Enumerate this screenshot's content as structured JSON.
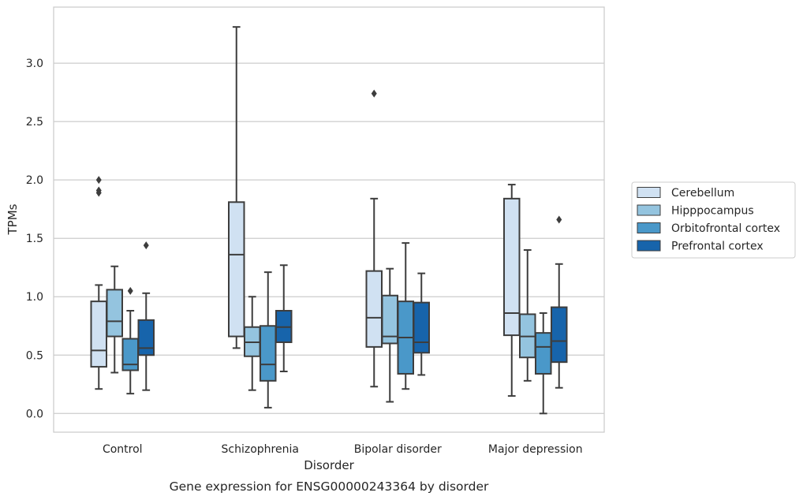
{
  "chart_data": {
    "type": "box",
    "caption": "Gene expression for ENSG00000243364 by disorder",
    "xlabel": "Disorder",
    "ylabel": "TPMs",
    "ylim": [
      -0.16,
      3.48
    ],
    "yticks": [
      0.0,
      0.5,
      1.0,
      1.5,
      2.0,
      2.5,
      3.0
    ],
    "ytick_labels": [
      "0.0",
      "0.5",
      "1.0",
      "1.5",
      "2.0",
      "2.5",
      "3.0"
    ],
    "grid": "horizontal",
    "legend_position": "right",
    "categories": [
      "Control",
      "Schizophrenia",
      "Bipolar disorder",
      "Major depression"
    ],
    "series": [
      {
        "name": "Cerebellum",
        "color": "#d0e1f2",
        "boxes": [
          {
            "whislo": 0.21,
            "q1": 0.4,
            "med": 0.54,
            "q3": 0.96,
            "whishi": 1.1,
            "fliers": [
              1.89,
              1.91,
              2.0
            ]
          },
          {
            "whislo": 0.56,
            "q1": 0.66,
            "med": 1.36,
            "q3": 1.81,
            "whishi": 3.31,
            "fliers": []
          },
          {
            "whislo": 0.23,
            "q1": 0.57,
            "med": 0.82,
            "q3": 1.22,
            "whishi": 1.84,
            "fliers": [
              2.74
            ]
          },
          {
            "whislo": 0.15,
            "q1": 0.67,
            "med": 0.86,
            "q3": 1.84,
            "whishi": 1.96,
            "fliers": []
          }
        ]
      },
      {
        "name": "Hipppocampus",
        "color": "#94c4df",
        "boxes": [
          {
            "whislo": 0.35,
            "q1": 0.66,
            "med": 0.79,
            "q3": 1.06,
            "whishi": 1.26,
            "fliers": []
          },
          {
            "whislo": 0.2,
            "q1": 0.49,
            "med": 0.61,
            "q3": 0.74,
            "whishi": 1.0,
            "fliers": []
          },
          {
            "whislo": 0.1,
            "q1": 0.6,
            "med": 0.66,
            "q3": 1.01,
            "whishi": 1.24,
            "fliers": []
          },
          {
            "whislo": 0.28,
            "q1": 0.48,
            "med": 0.66,
            "q3": 0.85,
            "whishi": 1.4,
            "fliers": []
          }
        ]
      },
      {
        "name": "Orbitofrontal cortex",
        "color": "#4a98c9",
        "boxes": [
          {
            "whislo": 0.17,
            "q1": 0.37,
            "med": 0.42,
            "q3": 0.64,
            "whishi": 0.88,
            "fliers": [
              1.05
            ]
          },
          {
            "whislo": 0.05,
            "q1": 0.28,
            "med": 0.42,
            "q3": 0.75,
            "whishi": 1.21,
            "fliers": []
          },
          {
            "whislo": 0.21,
            "q1": 0.34,
            "med": 0.65,
            "q3": 0.96,
            "whishi": 1.46,
            "fliers": []
          },
          {
            "whislo": 0.0,
            "q1": 0.34,
            "med": 0.57,
            "q3": 0.69,
            "whishi": 0.86,
            "fliers": []
          }
        ]
      },
      {
        "name": "Prefrontal cortex",
        "color": "#1764ab",
        "boxes": [
          {
            "whislo": 0.2,
            "q1": 0.5,
            "med": 0.56,
            "q3": 0.8,
            "whishi": 1.03,
            "fliers": [
              1.44
            ]
          },
          {
            "whislo": 0.36,
            "q1": 0.61,
            "med": 0.74,
            "q3": 0.88,
            "whishi": 1.27,
            "fliers": []
          },
          {
            "whislo": 0.33,
            "q1": 0.52,
            "med": 0.61,
            "q3": 0.95,
            "whishi": 1.2,
            "fliers": []
          },
          {
            "whislo": 0.22,
            "q1": 0.44,
            "med": 0.62,
            "q3": 0.91,
            "whishi": 1.28,
            "fliers": [
              1.66
            ]
          }
        ]
      }
    ],
    "line_color": "#3d3d3d",
    "grid_color": "#cccccc",
    "frame_color": "#cccccc"
  }
}
